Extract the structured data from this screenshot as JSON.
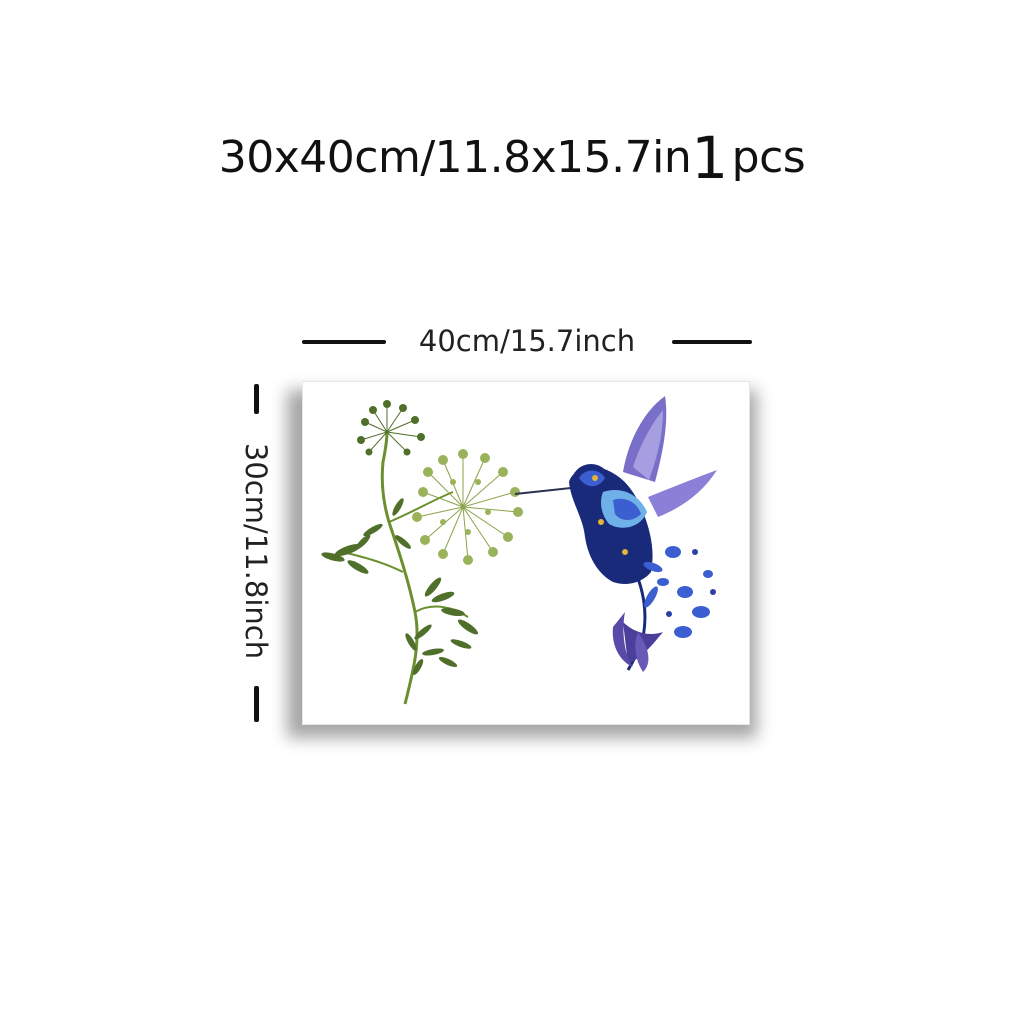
{
  "header": {
    "size_text": "30x40cm/11.8x15.7in",
    "quantity": "1",
    "quantity_unit": "pcs"
  },
  "dimensions": {
    "width_label": "40cm/15.7inch",
    "height_label": "30cm/11.8inch"
  },
  "artwork": {
    "subject": "pressed-flower hummingbird and queen anne's lace",
    "colors": {
      "stem_green": "#6b8f2e",
      "leaf_green": "#4f6f2a",
      "flower_green": "#9ab25a",
      "bird_dark_blue": "#1a2a7a",
      "bird_blue": "#3b5fd0",
      "bird_light_blue": "#6fb0e8",
      "bird_purple": "#7a6fc8",
      "accent_yellow": "#e0b53a"
    }
  }
}
